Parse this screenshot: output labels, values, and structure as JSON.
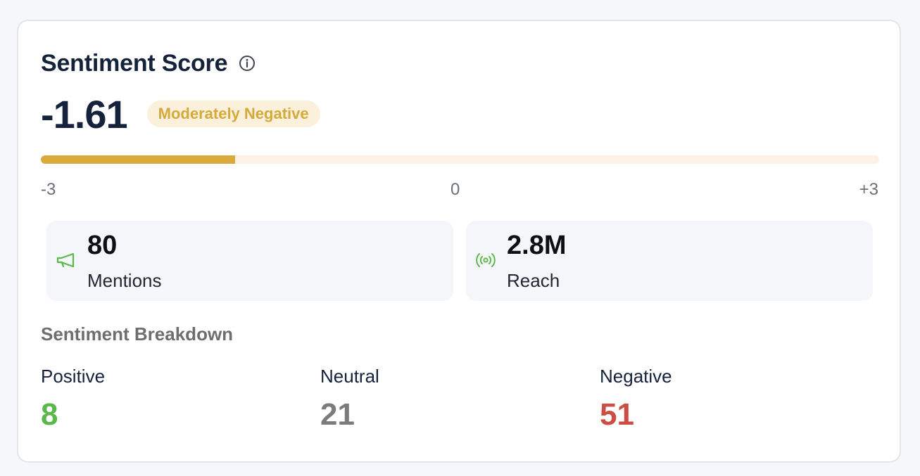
{
  "card": {
    "title": "Sentiment Score",
    "info_icon": "info-circle-icon"
  },
  "score": {
    "value": "-1.61",
    "badge": "Moderately Negative",
    "badge_color": "#d6aa3a",
    "numeric": -1.61,
    "min": -3,
    "max": 3,
    "bar_fill_color": "#d9a93c"
  },
  "scale": {
    "min_label": "-3",
    "mid_label": "0",
    "max_label": "+3"
  },
  "stats": {
    "mentions": {
      "value": "80",
      "label": "Mentions",
      "icon": "megaphone-icon"
    },
    "reach": {
      "value": "2.8M",
      "label": "Reach",
      "icon": "broadcast-icon"
    },
    "icon_color": "#5cb84a"
  },
  "breakdown": {
    "title": "Sentiment Breakdown",
    "positive": {
      "label": "Positive",
      "value": "8",
      "color": "#5cb84a"
    },
    "neutral": {
      "label": "Neutral",
      "value": "21",
      "color": "#7b7b7b"
    },
    "negative": {
      "label": "Negative",
      "value": "51",
      "color": "#cc4d44"
    }
  }
}
